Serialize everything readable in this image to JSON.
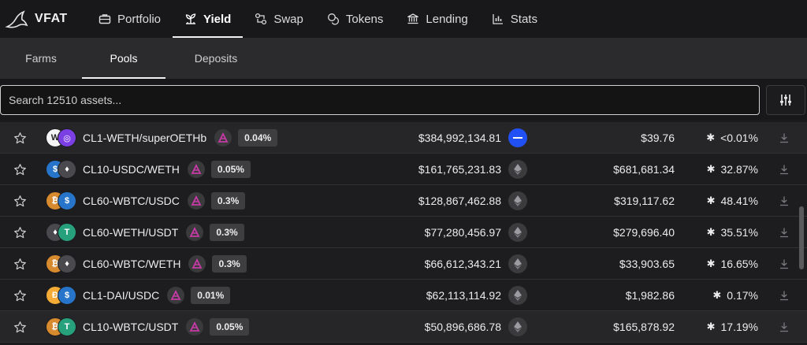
{
  "brand": {
    "name": "VFAT"
  },
  "nav": [
    {
      "label": "Portfolio",
      "icon": "briefcase-icon",
      "active": false
    },
    {
      "label": "Yield",
      "icon": "sprout-icon",
      "active": true
    },
    {
      "label": "Swap",
      "icon": "swap-icon",
      "active": false
    },
    {
      "label": "Tokens",
      "icon": "coins-icon",
      "active": false
    },
    {
      "label": "Lending",
      "icon": "bank-icon",
      "active": false
    },
    {
      "label": "Stats",
      "icon": "bar-chart-icon",
      "active": false
    }
  ],
  "subtabs": [
    {
      "label": "Farms",
      "active": false
    },
    {
      "label": "Pools",
      "active": true
    },
    {
      "label": "Deposits",
      "active": false
    }
  ],
  "search": {
    "placeholder": "Search 12510 assets..."
  },
  "pools": [
    {
      "name": "CL1-WETH/superOETHb",
      "fee": "0.04%",
      "tvl": "$384,992,134.81",
      "rewards": "$39.76",
      "apr": "<0.01%",
      "tokens": [
        "#f4f4f4",
        "#7b3fe4"
      ],
      "glyphs": [
        "W",
        "◎"
      ],
      "chain": "base"
    },
    {
      "name": "CL10-USDC/WETH",
      "fee": "0.05%",
      "tvl": "$161,765,231.83",
      "rewards": "$681,681.34",
      "apr": "32.87%",
      "tokens": [
        "#2775ca",
        "#4a4a4e"
      ],
      "glyphs": [
        "$",
        "♦"
      ],
      "chain": "eth"
    },
    {
      "name": "CL60-WBTC/USDC",
      "fee": "0.3%",
      "tvl": "$128,867,462.88",
      "rewards": "$319,117.62",
      "apr": "48.41%",
      "tokens": [
        "#d88a2f",
        "#2775ca"
      ],
      "glyphs": [
        "₿",
        "$"
      ],
      "chain": "eth"
    },
    {
      "name": "CL60-WETH/USDT",
      "fee": "0.3%",
      "tvl": "$77,280,456.97",
      "rewards": "$279,696.40",
      "apr": "35.51%",
      "tokens": [
        "#4a4a4e",
        "#26a17b"
      ],
      "glyphs": [
        "♦",
        "T"
      ],
      "chain": "eth"
    },
    {
      "name": "CL60-WBTC/WETH",
      "fee": "0.3%",
      "tvl": "$66,612,343.21",
      "rewards": "$33,903.65",
      "apr": "16.65%",
      "tokens": [
        "#d88a2f",
        "#4a4a4e"
      ],
      "glyphs": [
        "₿",
        "♦"
      ],
      "chain": "eth"
    },
    {
      "name": "CL1-DAI/USDC",
      "fee": "0.01%",
      "tvl": "$62,113,114.92",
      "rewards": "$1,982.86",
      "apr": "0.17%",
      "tokens": [
        "#f5ac37",
        "#2775ca"
      ],
      "glyphs": [
        "Đ",
        "$"
      ],
      "chain": "eth"
    },
    {
      "name": "CL10-WBTC/USDT",
      "fee": "0.05%",
      "tvl": "$50,896,686.78",
      "rewards": "$165,878.92",
      "apr": "17.19%",
      "tokens": [
        "#d88a2f",
        "#26a17b"
      ],
      "glyphs": [
        "₿",
        "T"
      ],
      "chain": "eth"
    }
  ],
  "colors": {
    "accent": "#f0f0f0",
    "base_chain": "#2151f5",
    "protocol": "#c63aa5"
  },
  "icons": {
    "star": "star-outline-icon",
    "download": "download-icon",
    "filter": "sliders-icon",
    "apr_marker": "sparkle-icon"
  }
}
